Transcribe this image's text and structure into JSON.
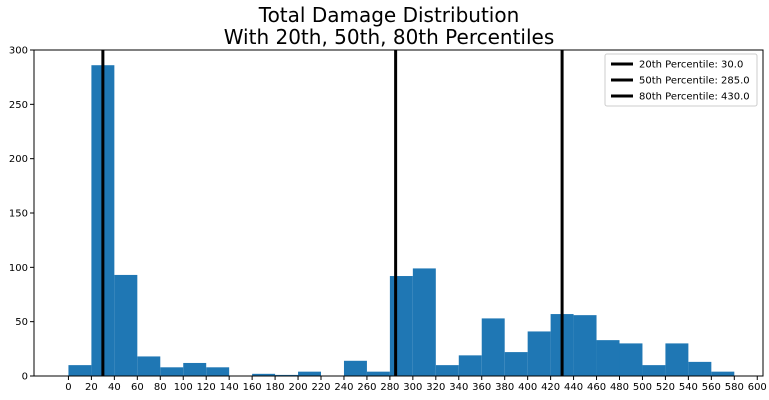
{
  "chart_data": {
    "type": "bar",
    "title": "Total Damage Distribution",
    "subtitle": "With 20th, 50th, 80th Percentiles",
    "xlabel": "",
    "ylabel": "",
    "xlim": [
      -30,
      605
    ],
    "ylim": [
      0,
      300
    ],
    "x_ticks": [
      0,
      20,
      40,
      60,
      80,
      100,
      120,
      140,
      160,
      180,
      200,
      220,
      240,
      260,
      280,
      300,
      320,
      340,
      360,
      380,
      400,
      420,
      440,
      460,
      480,
      500,
      520,
      540,
      560,
      580,
      600
    ],
    "y_ticks": [
      0,
      50,
      100,
      150,
      200,
      250,
      300
    ],
    "bar_color": "#1f77b4",
    "bins": [
      {
        "x0": 0,
        "x1": 20,
        "value": 10
      },
      {
        "x0": 20,
        "x1": 40,
        "value": 286
      },
      {
        "x0": 40,
        "x1": 60,
        "value": 93
      },
      {
        "x0": 60,
        "x1": 80,
        "value": 18
      },
      {
        "x0": 80,
        "x1": 100,
        "value": 8
      },
      {
        "x0": 100,
        "x1": 120,
        "value": 12
      },
      {
        "x0": 120,
        "x1": 140,
        "value": 8
      },
      {
        "x0": 160,
        "x1": 180,
        "value": 2
      },
      {
        "x0": 180,
        "x1": 200,
        "value": 1
      },
      {
        "x0": 200,
        "x1": 220,
        "value": 4
      },
      {
        "x0": 240,
        "x1": 260,
        "value": 14
      },
      {
        "x0": 260,
        "x1": 280,
        "value": 4
      },
      {
        "x0": 280,
        "x1": 300,
        "value": 92
      },
      {
        "x0": 300,
        "x1": 320,
        "value": 99
      },
      {
        "x0": 320,
        "x1": 340,
        "value": 10
      },
      {
        "x0": 340,
        "x1": 360,
        "value": 19
      },
      {
        "x0": 360,
        "x1": 380,
        "value": 53
      },
      {
        "x0": 380,
        "x1": 400,
        "value": 22
      },
      {
        "x0": 400,
        "x1": 420,
        "value": 41
      },
      {
        "x0": 420,
        "x1": 440,
        "value": 57
      },
      {
        "x0": 440,
        "x1": 460,
        "value": 56
      },
      {
        "x0": 460,
        "x1": 480,
        "value": 33
      },
      {
        "x0": 480,
        "x1": 500,
        "value": 30
      },
      {
        "x0": 500,
        "x1": 520,
        "value": 10
      },
      {
        "x0": 520,
        "x1": 540,
        "value": 30
      },
      {
        "x0": 540,
        "x1": 560,
        "value": 13
      },
      {
        "x0": 560,
        "x1": 580,
        "value": 4
      }
    ],
    "percentile_lines": [
      {
        "name": "20th Percentile: 30.0",
        "x": 30.0,
        "color": "#000000"
      },
      {
        "name": "50th Percentile: 285.0",
        "x": 285.0,
        "color": "#000000"
      },
      {
        "name": "80th Percentile: 430.0",
        "x": 430.0,
        "color": "#000000"
      }
    ],
    "legend_position": "top-right",
    "grid": false
  }
}
